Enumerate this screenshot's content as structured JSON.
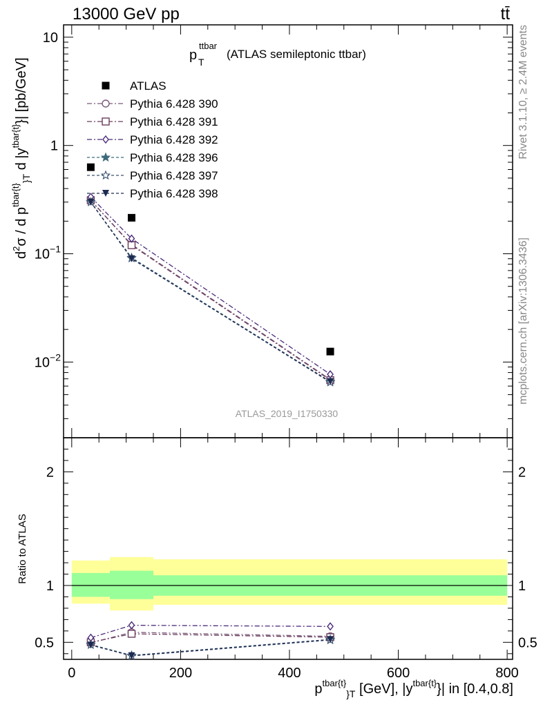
{
  "header": {
    "energy_label": "13000 GeV pp",
    "process_label": "tt̄"
  },
  "side_labels": {
    "rivet": "Rivet 3.1.10, ≥ 2.4M events",
    "mcplots": "mcplots.cern.ch [arXiv:1306.3436]"
  },
  "watermark": "ATLAS_2019_I1750330",
  "colors": {
    "ATLAS": "#000000",
    "Pythia 6.428 390": "#7a5a7a",
    "Pythia 6.428 391": "#6a3c5c",
    "Pythia 6.428 392": "#4a2a7a",
    "Pythia 6.428 396": "#3c6a7a",
    "Pythia 6.428 397": "#3a506e",
    "Pythia 6.428 398": "#1e2a50",
    "band_inner": "#99ff99",
    "band_outer": "#ffff99"
  },
  "chart_data": [
    {
      "type": "scatter",
      "title": {
        "main": "p",
        "main_sub": "T",
        "main_sup": "ttbar",
        "rest": "(ATLAS semileptonic ttbar)"
      },
      "ylabel": "d²σ / d p^{tbar{t}}_T d |y^{tbar{t}}| [pb/GeV]",
      "yscale": "log",
      "ylim": [
        0.002,
        13
      ],
      "xlim": [
        -15,
        810
      ],
      "yticks": [
        {
          "v": 10,
          "base": "10",
          "exp": ""
        },
        {
          "v": 1,
          "base": "1",
          "exp": ""
        },
        {
          "v": 0.1,
          "base": "10",
          "exp": "−1"
        },
        {
          "v": 0.01,
          "base": "10",
          "exp": "−2"
        }
      ],
      "legend_position": "top-left",
      "series": [
        {
          "name": "ATLAS",
          "marker": "square-filled",
          "line": "none",
          "x": [
            35,
            110,
            475
          ],
          "y": [
            0.63,
            0.215,
            0.0125
          ]
        },
        {
          "name": "Pythia 6.428 390",
          "marker": "circle-open",
          "line": "dashdot",
          "x": [
            35,
            110,
            475
          ],
          "y": [
            0.31,
            0.122,
            0.0069
          ]
        },
        {
          "name": "Pythia 6.428 391",
          "marker": "square-open",
          "line": "dashdot",
          "x": [
            35,
            110,
            475
          ],
          "y": [
            0.312,
            0.12,
            0.0068
          ]
        },
        {
          "name": "Pythia 6.428 392",
          "marker": "diamond-open",
          "line": "dashdot",
          "x": [
            35,
            110,
            475
          ],
          "y": [
            0.335,
            0.138,
            0.0077
          ]
        },
        {
          "name": "Pythia 6.428 396",
          "marker": "star-filled",
          "line": "dashed",
          "x": [
            35,
            110,
            475
          ],
          "y": [
            0.3,
            0.092,
            0.0066
          ]
        },
        {
          "name": "Pythia 6.428 397",
          "marker": "star-open",
          "line": "dashed",
          "x": [
            35,
            110,
            475
          ],
          "y": [
            0.3,
            0.091,
            0.0065
          ]
        },
        {
          "name": "Pythia 6.428 398",
          "marker": "triangle-down-filled",
          "line": "dashed",
          "x": [
            35,
            110,
            475
          ],
          "y": [
            0.3,
            0.09,
            0.0066
          ]
        }
      ]
    },
    {
      "type": "line",
      "ylabel": "Ratio to ATLAS",
      "xlabel": "p^{tbar{t}}_T [GeV], |y^{tbar{t}}| in [0.4,0.8]",
      "ylim": [
        0.35,
        2.3
      ],
      "xlim": [
        -15,
        810
      ],
      "xticks": [
        0,
        200,
        400,
        600,
        800
      ],
      "yticks": [
        0.5,
        1,
        2
      ],
      "reference_line": 1,
      "bands": [
        {
          "x0": 0,
          "x1": 70,
          "inner": [
            0.9,
            1.11
          ],
          "outer": [
            0.84,
            1.22
          ]
        },
        {
          "x0": 70,
          "x1": 150,
          "inner": [
            0.88,
            1.13
          ],
          "outer": [
            0.78,
            1.25
          ]
        },
        {
          "x0": 150,
          "x1": 800,
          "inner": [
            0.91,
            1.09
          ],
          "outer": [
            0.83,
            1.23
          ]
        }
      ],
      "series": [
        {
          "name": "Pythia 6.428 390",
          "x": [
            35,
            110,
            475
          ],
          "y": [
            0.495,
            0.588,
            0.553
          ]
        },
        {
          "name": "Pythia 6.428 391",
          "x": [
            35,
            110,
            475
          ],
          "y": [
            0.5,
            0.575,
            0.545
          ]
        },
        {
          "name": "Pythia 6.428 392",
          "x": [
            35,
            110,
            475
          ],
          "y": [
            0.54,
            0.65,
            0.64
          ]
        },
        {
          "name": "Pythia 6.428 396",
          "x": [
            35,
            110,
            475
          ],
          "y": [
            0.48,
            0.385,
            0.525
          ]
        },
        {
          "name": "Pythia 6.428 397",
          "x": [
            35,
            110,
            475
          ],
          "y": [
            0.478,
            0.38,
            0.52
          ]
        },
        {
          "name": "Pythia 6.428 398",
          "x": [
            35,
            110,
            475
          ],
          "y": [
            0.476,
            0.382,
            0.525
          ]
        }
      ]
    }
  ]
}
